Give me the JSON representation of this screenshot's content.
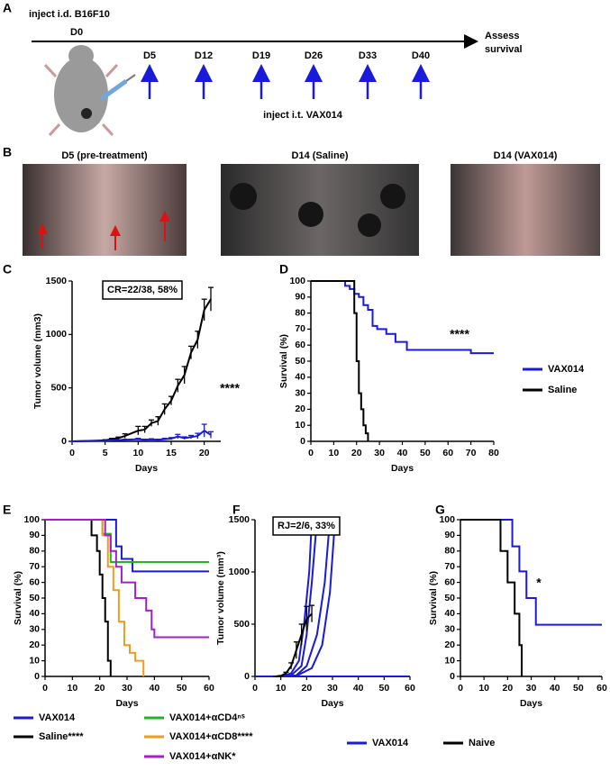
{
  "panels": [
    "A",
    "B",
    "C",
    "D",
    "E",
    "F",
    "G"
  ],
  "timeline": {
    "title": "inject i.d. B16F10",
    "start": "D0",
    "end": [
      "Assess",
      "survival"
    ],
    "doses": [
      "D5",
      "D12",
      "D19",
      "D26",
      "D33",
      "D40"
    ],
    "treatment": "inject i.t. VAX014"
  },
  "photos": [
    "D5 (pre-treatment)",
    "D14 (Saline)",
    "D14 (VAX014)"
  ],
  "chart_data": [
    {
      "type": "line",
      "xlabel": "Days",
      "ylabel": "Tumor volume (mm3)",
      "xlim": [
        0,
        22.5
      ],
      "xticks": [
        0,
        5,
        10,
        15,
        20
      ],
      "ylim": [
        0,
        1500
      ],
      "yticks": [
        0,
        500,
        1000,
        1500
      ],
      "annotations": [
        "CR=22/38, 58%",
        "****"
      ],
      "series": [
        {
          "color": "#000000",
          "x": [
            0,
            3,
            5,
            6,
            7,
            8,
            10,
            11,
            12,
            13,
            14,
            15,
            16,
            17,
            18,
            19,
            20,
            21
          ],
          "values": [
            0,
            5,
            10,
            20,
            30,
            50,
            100,
            110,
            170,
            190,
            300,
            380,
            520,
            620,
            830,
            950,
            1230,
            1330
          ],
          "errors": [
            0,
            2,
            5,
            8,
            10,
            20,
            40,
            30,
            30,
            40,
            50,
            40,
            60,
            80,
            60,
            80,
            100,
            110
          ]
        },
        {
          "color": "#1a1adb",
          "x": [
            0,
            3,
            5,
            6,
            7,
            8,
            10,
            11,
            12,
            13,
            14,
            15,
            16,
            17,
            18,
            19,
            20,
            21
          ],
          "values": [
            0,
            3,
            5,
            10,
            12,
            15,
            20,
            15,
            18,
            15,
            20,
            25,
            45,
            30,
            40,
            50,
            100,
            60
          ],
          "errors": [
            0,
            1,
            2,
            4,
            4,
            5,
            8,
            5,
            6,
            5,
            8,
            10,
            20,
            12,
            15,
            25,
            60,
            30
          ]
        }
      ]
    },
    {
      "type": "step",
      "xlabel": "Days",
      "ylabel": "Survival (%)",
      "xlim": [
        0,
        80
      ],
      "xticks": [
        0,
        10,
        20,
        30,
        40,
        50,
        60,
        70,
        80
      ],
      "ylim": [
        0,
        100
      ],
      "yticks": [
        0,
        10,
        20,
        30,
        40,
        50,
        60,
        70,
        80,
        90,
        100
      ],
      "annotations": [
        "****"
      ],
      "series": [
        {
          "name": "VAX014",
          "color": "#1a1adb",
          "x": [
            0,
            15,
            17,
            19,
            21,
            23,
            25,
            27,
            29,
            33,
            37,
            42,
            50,
            60,
            70,
            80
          ],
          "values": [
            100,
            97,
            95,
            92,
            90,
            85,
            82,
            72,
            70,
            67,
            62,
            57,
            57,
            57,
            55,
            55
          ]
        },
        {
          "name": "Saline",
          "color": "#000000",
          "x": [
            0,
            17,
            19,
            20,
            21,
            22,
            23,
            24,
            25
          ],
          "values": [
            100,
            100,
            80,
            50,
            30,
            20,
            10,
            5,
            0
          ]
        }
      ]
    },
    {
      "type": "step",
      "xlabel": "Days",
      "ylabel": "Survival (%)",
      "xlim": [
        0,
        60
      ],
      "xticks": [
        0,
        10,
        20,
        30,
        40,
        50,
        60
      ],
      "ylim": [
        0,
        100
      ],
      "yticks": [
        0,
        10,
        20,
        30,
        40,
        50,
        60,
        70,
        80,
        90,
        100
      ],
      "annotations": [],
      "series": [
        {
          "name": "VAX014",
          "color": "#1a1adb",
          "x": [
            0,
            26,
            28,
            32,
            60
          ],
          "values": [
            100,
            83,
            75,
            67,
            67
          ]
        },
        {
          "name": "Saline****",
          "color": "#000000",
          "x": [
            0,
            17,
            19,
            20,
            21,
            22,
            23,
            24
          ],
          "values": [
            100,
            90,
            80,
            65,
            50,
            35,
            10,
            0
          ]
        },
        {
          "name": "VAX014+αCD4ⁿˢ",
          "color": "#22b422",
          "x": [
            0,
            21,
            24,
            60
          ],
          "values": [
            100,
            91,
            73,
            73
          ]
        },
        {
          "name": "VAX014+αCD8****",
          "color": "#f39a1e",
          "x": [
            0,
            21,
            23,
            25,
            27,
            29,
            31,
            33,
            36
          ],
          "values": [
            100,
            90,
            70,
            55,
            35,
            20,
            15,
            10,
            0
          ]
        },
        {
          "name": "VAX014+αNK*",
          "color": "#a020d0",
          "x": [
            0,
            22,
            24,
            26,
            28,
            33,
            37,
            39,
            40,
            60
          ],
          "values": [
            100,
            90,
            80,
            70,
            60,
            50,
            42,
            30,
            25,
            25
          ]
        }
      ]
    },
    {
      "type": "line",
      "xlabel": "Days",
      "ylabel": "Tumor volume (mm³)",
      "xlim": [
        0,
        60
      ],
      "xticks": [
        0,
        10,
        20,
        30,
        40,
        50,
        60
      ],
      "ylim": [
        0,
        1500
      ],
      "yticks": [
        0,
        500,
        1000,
        1500
      ],
      "annotations": [
        "RJ=2/6, 33%"
      ],
      "series": [
        {
          "color": "#1a1adb",
          "x": [
            10,
            14,
            17,
            19,
            21,
            22
          ],
          "values": [
            0,
            30,
            150,
            500,
            1000,
            1500
          ]
        },
        {
          "color": "#1a1adb",
          "x": [
            10,
            14,
            18,
            20,
            22,
            24
          ],
          "values": [
            0,
            10,
            100,
            400,
            900,
            1500
          ]
        },
        {
          "color": "#1a1adb",
          "x": [
            10,
            16,
            20,
            24,
            27,
            29
          ],
          "values": [
            0,
            10,
            100,
            400,
            900,
            1500
          ]
        },
        {
          "color": "#1a1adb",
          "x": [
            10,
            16,
            22,
            26,
            29,
            31
          ],
          "values": [
            0,
            5,
            80,
            300,
            800,
            1500
          ]
        },
        {
          "color": "#1a1adb",
          "x": [
            0,
            10,
            20,
            30,
            40,
            50,
            60
          ],
          "values": [
            0,
            0,
            0,
            0,
            0,
            0,
            0
          ]
        },
        {
          "color": "#000000",
          "x": [
            8,
            10,
            12,
            14,
            16,
            18,
            20,
            22
          ],
          "values": [
            0,
            5,
            30,
            100,
            250,
            400,
            550,
            600
          ],
          "errors": [
            0,
            3,
            10,
            30,
            80,
            100,
            120,
            80
          ]
        }
      ]
    },
    {
      "type": "step",
      "xlabel": "Days",
      "ylabel": "Survival (%)",
      "xlim": [
        0,
        60
      ],
      "xticks": [
        0,
        10,
        20,
        30,
        40,
        50,
        60
      ],
      "ylim": [
        0,
        100
      ],
      "yticks": [
        0,
        10,
        20,
        30,
        40,
        50,
        60,
        70,
        80,
        90,
        100
      ],
      "annotations": [
        "*"
      ],
      "series": [
        {
          "name": "VAX014",
          "color": "#1a1adb",
          "x": [
            0,
            22,
            25,
            28,
            32,
            60
          ],
          "values": [
            100,
            83,
            67,
            50,
            33,
            33
          ]
        },
        {
          "name": "Naive",
          "color": "#000000",
          "x": [
            0,
            17,
            20,
            23,
            25,
            26
          ],
          "values": [
            100,
            80,
            60,
            40,
            20,
            0
          ]
        }
      ]
    }
  ]
}
